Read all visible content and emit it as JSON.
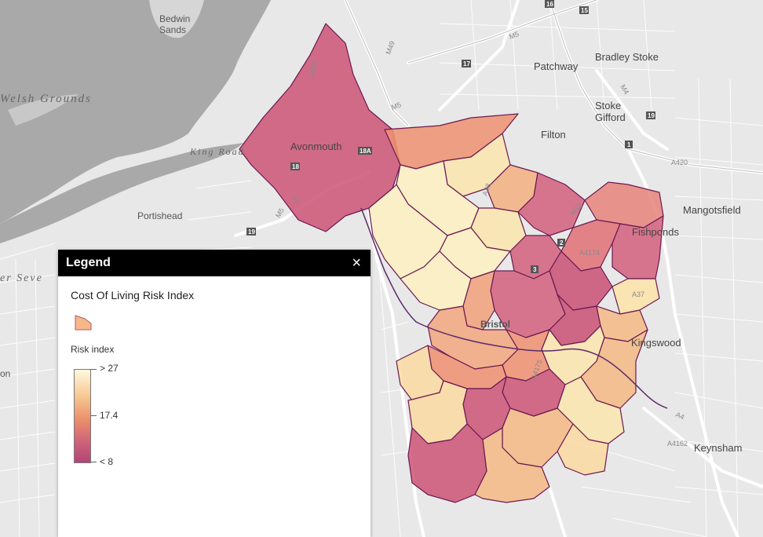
{
  "map": {
    "places": {
      "bedwin": "Bedwin",
      "sands": "Sands",
      "welsh_grounds": "Welsh Grounds",
      "king_road": "King Road",
      "severn": "er Seve",
      "avonmouth": "Avonmouth",
      "portishead": "Portishead",
      "bristol": "Bristol",
      "patchway": "Patchway",
      "bradley_stoke": "Bradley Stoke",
      "stoke": "Stoke",
      "gifford": "Gifford",
      "filton": "Filton",
      "mangotsfield": "Mangotsfield",
      "fishponds": "Fishponds",
      "kingswood": "Kingswood",
      "keynsham": "Keynsham",
      "on": "on"
    },
    "roads": [
      "M5",
      "M49",
      "M4",
      "M32",
      "A4",
      "A403",
      "A38",
      "A4018",
      "A432",
      "A4174",
      "A420",
      "A37",
      "A4175",
      "A4162"
    ],
    "junctions": [
      "16",
      "15",
      "17",
      "19",
      "18",
      "18A",
      "1",
      "2",
      "3"
    ],
    "colors": {
      "background": "#e6e6e6",
      "water": "#a8a8a8",
      "road": "#ffffff",
      "fill_high": "#fff3c4",
      "fill_mid": "#f3a47c",
      "fill_low": "#cc5476",
      "outline": "#6b1a52"
    }
  },
  "legend": {
    "title": "Legend",
    "close": "×",
    "layer_name": "Cost Of Living Risk Index",
    "field_name": "Risk index",
    "ramp": {
      "max_label": "> 27",
      "mid_label": "17.4",
      "min_label": "< 8",
      "max": 27,
      "mid": 17.4,
      "min": 8
    }
  }
}
